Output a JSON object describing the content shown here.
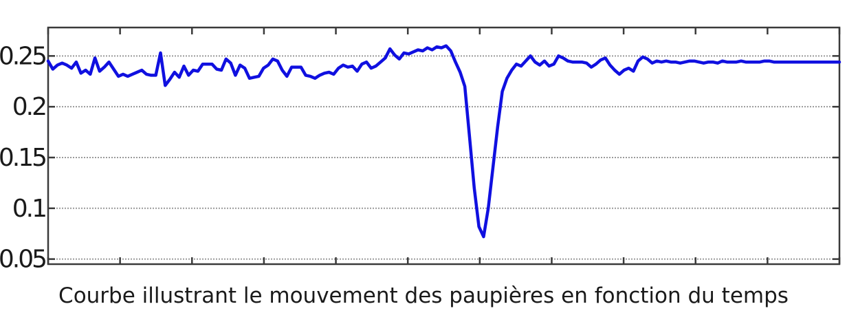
{
  "caption": "Courbe illustrant le mouvement des paupières en fonction du temps",
  "chart_data": {
    "type": "line",
    "title": "",
    "xlabel": "",
    "ylabel": "",
    "ylim": [
      0.045,
      0.278
    ],
    "xlim": [
      0,
      169
    ],
    "grid": true,
    "grid_style": "dotted",
    "line_color": "#1010e0",
    "ytick_values": [
      0.05,
      0.1,
      0.15,
      0.2,
      0.25
    ],
    "ytick_labels": [
      "0.05",
      "0.1",
      "0.15",
      "0.2",
      "0.25"
    ],
    "xtick_count": 11,
    "series": [
      {
        "x": [
          0,
          1,
          2,
          3,
          4,
          5,
          6,
          7,
          8,
          9,
          10,
          11,
          12,
          13,
          14,
          15,
          16,
          17,
          18,
          19,
          20,
          21,
          22,
          23,
          24,
          25,
          26,
          27,
          28,
          29,
          30,
          31,
          32,
          33,
          34,
          35,
          36,
          37,
          38,
          39,
          40,
          41,
          42,
          43,
          44,
          45,
          46,
          47,
          48,
          49,
          50,
          51,
          52,
          53,
          54,
          55,
          56,
          57,
          58,
          59,
          60,
          61,
          62,
          63,
          64,
          65,
          66,
          67,
          68,
          69,
          70,
          71,
          72,
          73,
          74,
          75,
          76,
          77,
          78,
          79,
          80,
          81,
          82,
          83,
          84,
          85,
          86,
          87,
          88,
          89,
          90,
          91,
          92,
          93,
          94,
          95,
          96,
          97,
          98,
          99,
          100,
          101,
          102,
          103,
          104,
          105,
          106,
          107,
          108,
          109,
          110,
          111,
          112,
          113,
          114,
          115,
          116,
          117,
          118,
          119,
          120,
          121,
          122,
          123,
          124,
          125,
          126,
          127,
          128,
          129,
          130,
          131,
          132,
          133,
          134,
          135,
          136,
          137,
          138,
          139,
          140,
          141,
          142,
          143,
          144,
          145,
          146,
          147,
          148,
          149,
          150,
          151,
          152,
          153,
          154,
          155,
          156,
          157,
          158,
          159,
          160,
          161,
          162,
          163,
          164,
          165,
          166,
          167,
          168,
          169
        ],
        "values": [
          0.245,
          0.237,
          0.241,
          0.243,
          0.241,
          0.238,
          0.244,
          0.233,
          0.236,
          0.232,
          0.248,
          0.235,
          0.239,
          0.244,
          0.237,
          0.23,
          0.232,
          0.23,
          0.232,
          0.234,
          0.236,
          0.232,
          0.231,
          0.231,
          0.253,
          0.221,
          0.227,
          0.234,
          0.229,
          0.24,
          0.231,
          0.236,
          0.235,
          0.242,
          0.242,
          0.242,
          0.237,
          0.236,
          0.247,
          0.243,
          0.231,
          0.241,
          0.238,
          0.228,
          0.229,
          0.23,
          0.238,
          0.241,
          0.247,
          0.245,
          0.236,
          0.23,
          0.239,
          0.239,
          0.239,
          0.231,
          0.23,
          0.228,
          0.231,
          0.233,
          0.234,
          0.232,
          0.238,
          0.241,
          0.239,
          0.24,
          0.235,
          0.242,
          0.244,
          0.238,
          0.24,
          0.244,
          0.248,
          0.257,
          0.251,
          0.247,
          0.253,
          0.252,
          0.254,
          0.256,
          0.255,
          0.258,
          0.256,
          0.259,
          0.258,
          0.26,
          0.255,
          0.244,
          0.234,
          0.22,
          0.17,
          0.12,
          0.082,
          0.072,
          0.1,
          0.14,
          0.18,
          0.215,
          0.228,
          0.236,
          0.242,
          0.24,
          0.245,
          0.25,
          0.244,
          0.241,
          0.245,
          0.24,
          0.242,
          0.25,
          0.248,
          0.245,
          0.244,
          0.244,
          0.244,
          0.243,
          0.239,
          0.242,
          0.246,
          0.248,
          0.241,
          0.236,
          0.232,
          0.236,
          0.238,
          0.235,
          0.245,
          0.249,
          0.247,
          0.243,
          0.245,
          0.244,
          0.245,
          0.244,
          0.244,
          0.243,
          0.244,
          0.245,
          0.245,
          0.244,
          0.243,
          0.244,
          0.244,
          0.243,
          0.245,
          0.244,
          0.244,
          0.244,
          0.245,
          0.244,
          0.244,
          0.244,
          0.244,
          0.245,
          0.245,
          0.244,
          0.244,
          0.244,
          0.244,
          0.244,
          0.244,
          0.244,
          0.244,
          0.244,
          0.244,
          0.244,
          0.244,
          0.244,
          0.244,
          0.244
        ]
      }
    ]
  }
}
